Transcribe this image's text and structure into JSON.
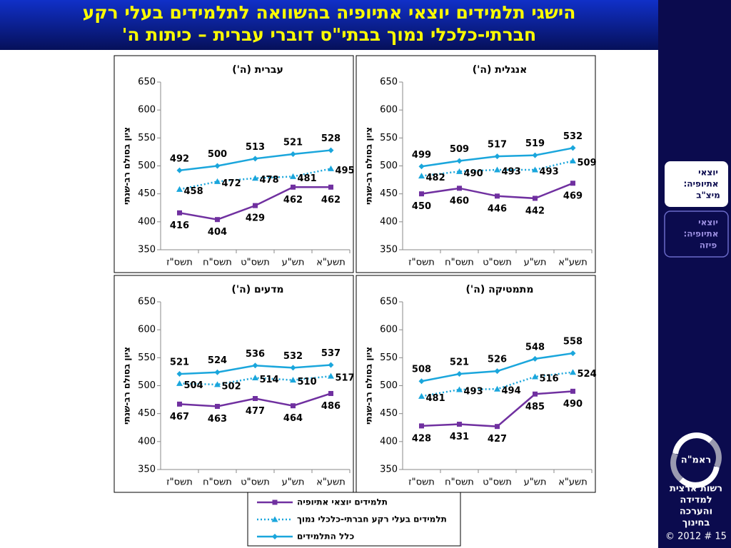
{
  "header": {
    "title_lines": [
      "הישגי תלמידים יוצאי אתיופיה בהשוואה לתלמידים בעלי רקע",
      "חברתי-כלכלי נמוך בבתי\"ס דוברי עברית – כיתות ה'"
    ]
  },
  "nav": [
    {
      "lines": [
        "יוצאי",
        "אתיופיה:",
        "מיצ\"ב"
      ]
    },
    {
      "lines": [
        "יוצאי",
        "אתיופיה:",
        "פיזה"
      ]
    }
  ],
  "logo": {
    "name": "ראמ\"ה",
    "org_lines": [
      "רשות ארצית",
      "למדידה",
      "והערכה",
      "בחינוך"
    ]
  },
  "footer": "© 2012 # 15",
  "chart_data": [
    {
      "type": "line",
      "title": "עברית (ה')",
      "y_label": "ציון בסולם רב-שנתי",
      "categories": [
        "תשס\"ז",
        "תשס\"ח",
        "תשס\"ט",
        "תש\"ע",
        "תשע\"א"
      ],
      "ylim": [
        350,
        650
      ],
      "yticks": [
        350,
        400,
        450,
        500,
        550,
        600,
        650
      ],
      "series": [
        {
          "name": "תלמידים יוצאי אתיופיה",
          "color": "#7030a0",
          "style": "solid",
          "marker": "square",
          "values": [
            416,
            404,
            429,
            462,
            462
          ]
        },
        {
          "name": "תלמידים בעלי רקע חברתי-כלכלי נמוך",
          "color": "#1aa6dc",
          "style": "dotted",
          "marker": "triangle",
          "values": [
            458,
            472,
            478,
            481,
            495
          ]
        },
        {
          "name": "כלל  התלמידים",
          "color": "#1aa6dc",
          "style": "solid",
          "marker": "diamond",
          "values": [
            492,
            500,
            513,
            521,
            528
          ]
        }
      ]
    },
    {
      "type": "line",
      "title": "אנגלית (ה')",
      "y_label": "ציון בסולם רב-שנתי",
      "categories": [
        "תשס\"ז",
        "תשס\"ח",
        "תשס\"ט",
        "תש\"ע",
        "תשע\"א"
      ],
      "ylim": [
        350,
        650
      ],
      "yticks": [
        350,
        400,
        450,
        500,
        550,
        600,
        650
      ],
      "series": [
        {
          "name": "תלמידים יוצאי אתיופיה",
          "color": "#7030a0",
          "style": "solid",
          "marker": "square",
          "values": [
            450,
            460,
            446,
            442,
            469
          ]
        },
        {
          "name": "תלמידים בעלי רקע חברתי-כלכלי נמוך",
          "color": "#1aa6dc",
          "style": "dotted",
          "marker": "triangle",
          "values": [
            482,
            490,
            493,
            493,
            509
          ]
        },
        {
          "name": "כלל  התלמידים",
          "color": "#1aa6dc",
          "style": "solid",
          "marker": "diamond",
          "values": [
            499,
            509,
            517,
            519,
            532
          ]
        }
      ]
    },
    {
      "type": "line",
      "title": "מדעים (ה')",
      "y_label": "ציון בסולם רב-שנתי",
      "categories": [
        "תשס\"ז",
        "תשס\"ח",
        "תשס\"ט",
        "תש\"ע",
        "תשע\"א"
      ],
      "ylim": [
        350,
        650
      ],
      "yticks": [
        350,
        400,
        450,
        500,
        550,
        600,
        650
      ],
      "series": [
        {
          "name": "תלמידים יוצאי אתיופיה",
          "color": "#7030a0",
          "style": "solid",
          "marker": "square",
          "values": [
            467,
            463,
            477,
            464,
            486
          ]
        },
        {
          "name": "תלמידים בעלי רקע חברתי-כלכלי נמוך",
          "color": "#1aa6dc",
          "style": "dotted",
          "marker": "triangle",
          "values": [
            504,
            502,
            514,
            510,
            517
          ]
        },
        {
          "name": "כלל  התלמידים",
          "color": "#1aa6dc",
          "style": "solid",
          "marker": "diamond",
          "values": [
            521,
            524,
            536,
            532,
            537
          ]
        }
      ]
    },
    {
      "type": "line",
      "title": "מתמטיקה (ה')",
      "y_label": "ציון בסולם רב-שנתי",
      "categories": [
        "תשס\"ז",
        "תשס\"ח",
        "תשס\"ט",
        "תש\"ע",
        "תשע\"א"
      ],
      "ylim": [
        350,
        650
      ],
      "yticks": [
        350,
        400,
        450,
        500,
        550,
        600,
        650
      ],
      "series": [
        {
          "name": "תלמידים יוצאי אתיופיה",
          "color": "#7030a0",
          "style": "solid",
          "marker": "square",
          "values": [
            428,
            431,
            427,
            485,
            490
          ]
        },
        {
          "name": "תלמידים בעלי רקע חברתי-כלכלי נמוך",
          "color": "#1aa6dc",
          "style": "dotted",
          "marker": "triangle",
          "values": [
            481,
            493,
            494,
            516,
            524
          ]
        },
        {
          "name": "כלל  התלמידים",
          "color": "#1aa6dc",
          "style": "solid",
          "marker": "diamond",
          "values": [
            508,
            521,
            526,
            548,
            558
          ]
        }
      ]
    }
  ]
}
